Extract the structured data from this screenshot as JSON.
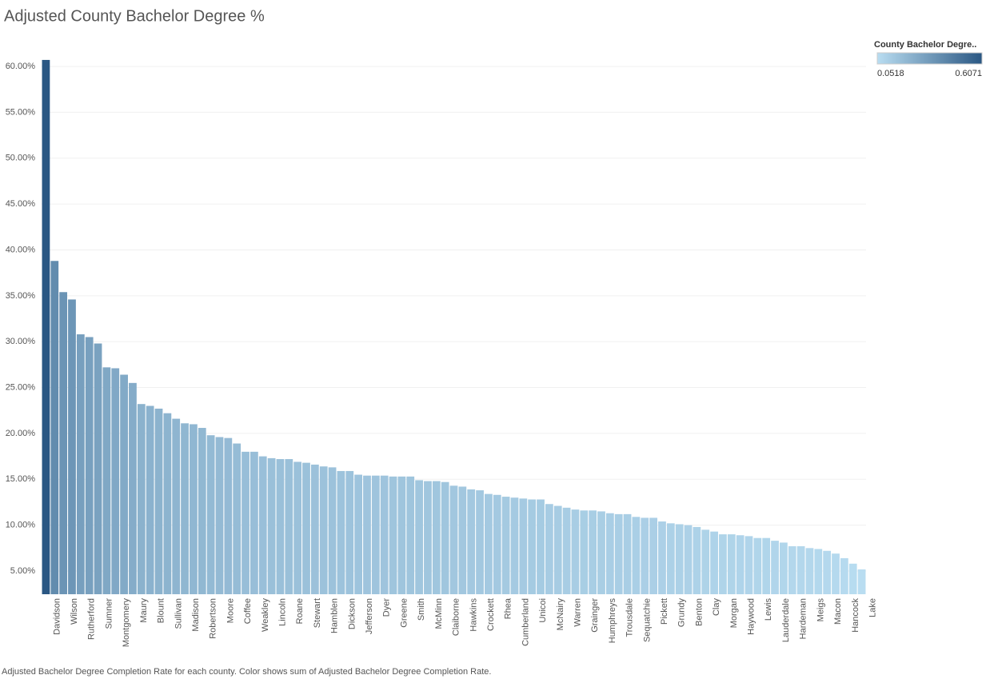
{
  "chart_data": {
    "type": "bar",
    "title": "Adjusted County Bachelor Degree %",
    "caption": "Adjusted Bachelor Degree Completion Rate for each county.  Color shows sum of Adjusted Bachelor Degree Completion Rate.",
    "categories": [
      "Davidson",
      null,
      "Wilson",
      null,
      "Rutherford",
      null,
      "Sumner",
      null,
      "Montgomery",
      null,
      "Maury",
      null,
      "Blount",
      null,
      "Sullivan",
      null,
      "Madison",
      null,
      "Robertson",
      null,
      "Moore",
      null,
      "Coffee",
      null,
      "Weakley",
      null,
      "Lincoln",
      null,
      "Roane",
      null,
      "Stewart",
      null,
      "Hamblen",
      null,
      "Dickson",
      null,
      "Jefferson",
      null,
      "Dyer",
      null,
      "Greene",
      null,
      "Smith",
      null,
      "McMinn",
      null,
      "Claiborne",
      null,
      "Hawkins",
      null,
      "Crockett",
      null,
      "Rhea",
      null,
      "Cumberland",
      null,
      "Unicoi",
      null,
      "McNairy",
      null,
      "Warren",
      null,
      "Grainger",
      null,
      "Humphreys",
      null,
      "Trousdale",
      null,
      "Sequatchie",
      null,
      "Pickett",
      null,
      "Grundy",
      null,
      "Benton",
      null,
      "Clay",
      null,
      "Morgan",
      null,
      "Haywood",
      null,
      "Lewis",
      null,
      "Lauderdale",
      null,
      "Hardeman",
      null,
      "Meigs",
      null,
      "Macon",
      null,
      "Hancock",
      null,
      "Lake"
    ],
    "values": [
      60.71,
      38.8,
      35.4,
      34.6,
      30.8,
      30.5,
      29.8,
      27.2,
      27.1,
      26.4,
      25.5,
      23.2,
      23.0,
      22.7,
      22.2,
      21.6,
      21.1,
      21.0,
      20.6,
      19.8,
      19.6,
      19.5,
      18.9,
      18.0,
      18.0,
      17.5,
      17.3,
      17.2,
      17.2,
      16.9,
      16.8,
      16.6,
      16.4,
      16.3,
      15.9,
      15.9,
      15.5,
      15.4,
      15.4,
      15.4,
      15.3,
      15.3,
      15.3,
      14.9,
      14.8,
      14.8,
      14.7,
      14.3,
      14.2,
      13.9,
      13.8,
      13.4,
      13.3,
      13.1,
      13.0,
      12.9,
      12.8,
      12.8,
      12.3,
      12.1,
      11.9,
      11.7,
      11.6,
      11.6,
      11.5,
      11.3,
      11.2,
      11.2,
      10.9,
      10.8,
      10.8,
      10.4,
      10.2,
      10.1,
      10.0,
      9.8,
      9.5,
      9.3,
      9.0,
      9.0,
      8.9,
      8.8,
      8.6,
      8.6,
      8.3,
      8.1,
      7.7,
      7.7,
      7.5,
      7.4,
      7.2,
      6.9,
      6.4,
      5.8,
      5.18
    ],
    "ylim": [
      2.47,
      61.14
    ],
    "yticks": [
      {
        "value": 5,
        "label": "5.00%"
      },
      {
        "value": 10,
        "label": "10.00%"
      },
      {
        "value": 15,
        "label": "15.00%"
      },
      {
        "value": 20,
        "label": "20.00%"
      },
      {
        "value": 25,
        "label": "25.00%"
      },
      {
        "value": 30,
        "label": "30.00%"
      },
      {
        "value": 35,
        "label": "35.00%"
      },
      {
        "value": 40,
        "label": "40.00%"
      },
      {
        "value": 45,
        "label": "45.00%"
      },
      {
        "value": 50,
        "label": "50.00%"
      },
      {
        "value": 55,
        "label": "55.00%"
      },
      {
        "value": 60,
        "label": "60.00%"
      }
    ],
    "grid": true,
    "legend": {
      "title": "County Bachelor Degre..",
      "min": 0.0518,
      "max": 0.6071,
      "color_low": "#b9ddf1",
      "color_high": "#2a5783"
    }
  }
}
